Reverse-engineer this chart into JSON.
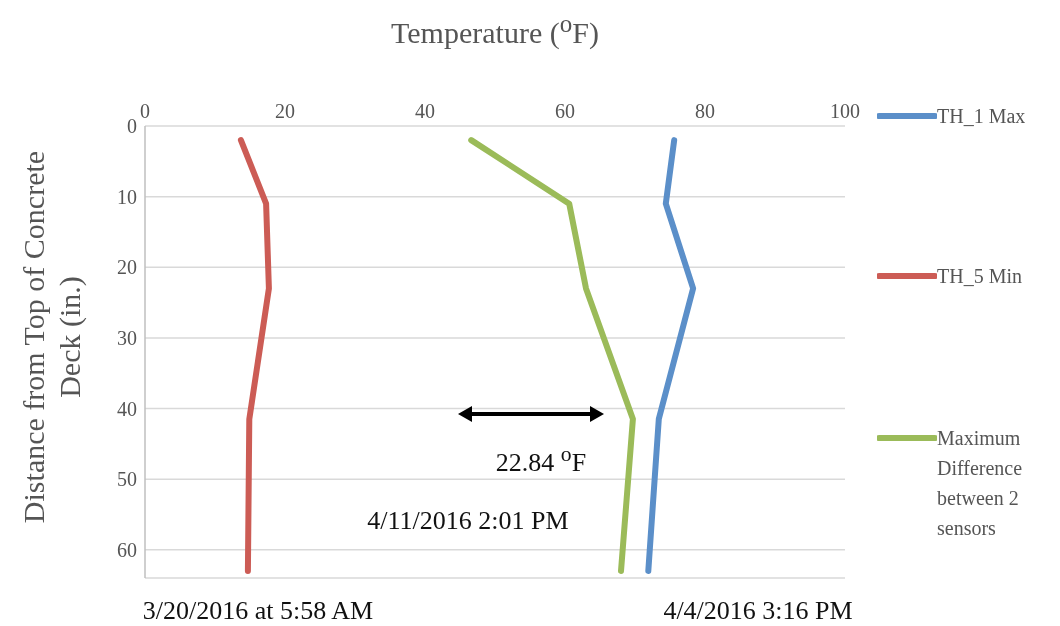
{
  "chart_data": {
    "type": "line",
    "title": "Temperature ($^{o}$F)",
    "ylabel": "Distance from Top of Concrete Deck (in.)",
    "series": [
      {
        "name": "TH_1 Max",
        "color": "#5b8fc9",
        "x": [
          75.6,
          74.4,
          78.3,
          73.4,
          71.9
        ],
        "values": [
          2,
          11,
          23,
          41.5,
          63
        ]
      },
      {
        "name": "TH_5 Min",
        "color": "#cc5c55",
        "x": [
          13.7,
          17.3,
          17.7,
          14.9,
          14.7
        ],
        "values": [
          2,
          11,
          23,
          41.5,
          63
        ]
      },
      {
        "name": "Maximum Difference between 2 sensors",
        "color": "#9bbb59",
        "x": [
          46.6,
          60.6,
          63,
          69.7,
          68
        ],
        "values": [
          2,
          11,
          23,
          41.5,
          63
        ]
      }
    ],
    "xlim": [
      0,
      100
    ],
    "xticks": [
      0,
      20,
      40,
      60,
      80,
      100
    ],
    "ylim": [
      64,
      0
    ],
    "yticks": [
      0,
      10,
      20,
      30,
      40,
      50,
      60
    ],
    "grid": "y",
    "legend": "right",
    "marker": "none",
    "line_style": "solid",
    "annotations": [
      "22.84 $^{o}$F",
      "4/11/2016 2:01 PM",
      "3/20/2016 at 5:58 AM",
      "4/4/2016 3:16 PM"
    ]
  }
}
